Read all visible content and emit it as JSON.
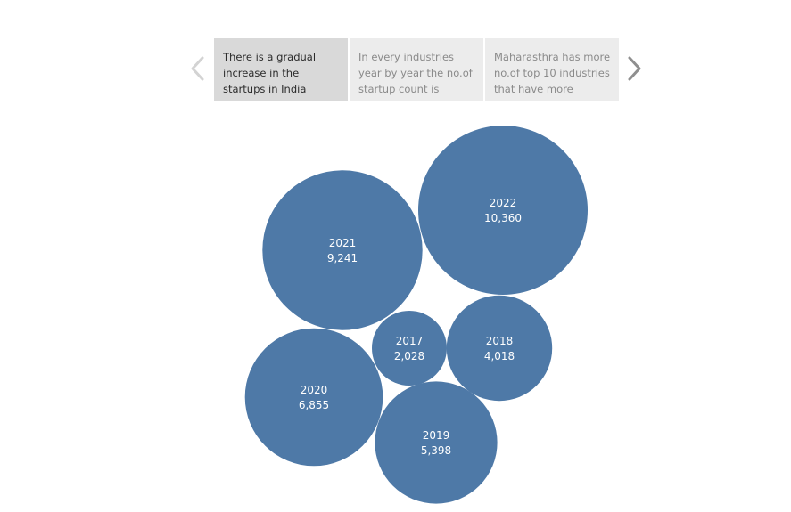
{
  "story": {
    "points": [
      {
        "label": "There is a gradual increase in the startups in India",
        "active": true
      },
      {
        "label": "In every industries year by year the no.of startup count is",
        "active": false
      },
      {
        "label": "Maharasthra has more no.of top 10 industries that have more",
        "active": false
      }
    ],
    "prev_icon": "chevron-left-icon",
    "next_icon": "chevron-right-icon"
  },
  "colors": {
    "bubble": "#4e79a7",
    "active_tab": "#d9d9d9",
    "inactive_tab": "#ececec",
    "arrow_disabled": "#d3d3d3",
    "arrow_enabled": "#8f8f8f"
  },
  "chart_data": {
    "type": "packed-bubble",
    "series": [
      {
        "label": "2017",
        "value": "2,028",
        "num": 2028
      },
      {
        "label": "2018",
        "value": "4,018",
        "num": 4018
      },
      {
        "label": "2019",
        "value": "5,398",
        "num": 5398
      },
      {
        "label": "2020",
        "value": "6,855",
        "num": 6855
      },
      {
        "label": "2021",
        "value": "9,241",
        "num": 9241
      },
      {
        "label": "2022",
        "value": "10,360",
        "num": 10360
      }
    ]
  }
}
